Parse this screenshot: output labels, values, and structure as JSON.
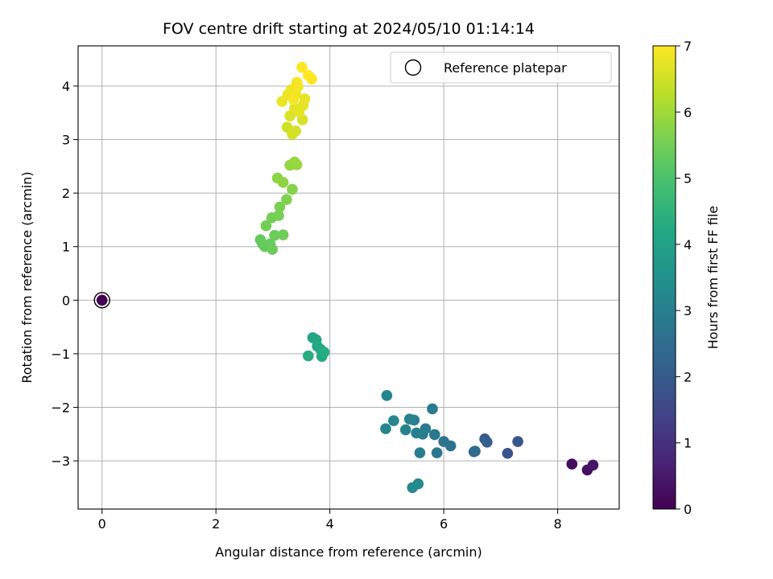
{
  "chart_data": {
    "type": "scatter",
    "title": "FOV centre drift starting at 2024/05/10 01:14:14",
    "xlabel": "Angular distance from reference (arcmin)",
    "ylabel": "Rotation from reference (arcmin)",
    "xlim": [
      -0.42,
      9.08
    ],
    "ylim": [
      -3.9,
      4.75
    ],
    "xticks": [
      "0",
      "2",
      "4",
      "6",
      "8"
    ],
    "yticks": [
      "4",
      "3",
      "2",
      "1",
      "0",
      "−1",
      "−2",
      "−3"
    ],
    "grid": true,
    "legend": {
      "placement": "top-right",
      "label": "Reference platepar"
    },
    "reference_point": {
      "x": 0,
      "y": 0
    },
    "colorbar": {
      "label": "Hours from first FF file",
      "range": [
        0,
        7
      ],
      "ticks": [
        "0",
        "1",
        "2",
        "3",
        "4",
        "5",
        "6",
        "7"
      ],
      "colormap": "viridis"
    },
    "points": [
      {
        "x": 0.0,
        "y": 0.0,
        "h": 0.0
      },
      {
        "x": 8.25,
        "y": -3.06,
        "h": 0.2
      },
      {
        "x": 8.52,
        "y": -3.17,
        "h": 0.3
      },
      {
        "x": 8.62,
        "y": -3.08,
        "h": 0.4
      },
      {
        "x": 7.12,
        "y": -2.86,
        "h": 1.8
      },
      {
        "x": 7.3,
        "y": -2.64,
        "h": 1.9
      },
      {
        "x": 6.72,
        "y": -2.59,
        "h": 2.0
      },
      {
        "x": 6.76,
        "y": -2.65,
        "h": 2.1
      },
      {
        "x": 6.53,
        "y": -2.83,
        "h": 2.4
      },
      {
        "x": 6.55,
        "y": -2.82,
        "h": 2.45
      },
      {
        "x": 6.12,
        "y": -2.72,
        "h": 2.6
      },
      {
        "x": 6.0,
        "y": -2.64,
        "h": 2.7
      },
      {
        "x": 5.88,
        "y": -2.85,
        "h": 2.75
      },
      {
        "x": 5.84,
        "y": -2.51,
        "h": 2.8
      },
      {
        "x": 5.8,
        "y": -2.03,
        "h": 2.85
      },
      {
        "x": 5.68,
        "y": -2.4,
        "h": 2.9
      },
      {
        "x": 5.63,
        "y": -2.5,
        "h": 2.95
      },
      {
        "x": 5.58,
        "y": -2.85,
        "h": 3.0
      },
      {
        "x": 5.52,
        "y": -2.48,
        "h": 3.0
      },
      {
        "x": 5.48,
        "y": -2.24,
        "h": 3.05
      },
      {
        "x": 5.4,
        "y": -2.22,
        "h": 3.1
      },
      {
        "x": 5.33,
        "y": -2.42,
        "h": 3.1
      },
      {
        "x": 5.12,
        "y": -2.25,
        "h": 3.15
      },
      {
        "x": 4.98,
        "y": -2.4,
        "h": 3.2
      },
      {
        "x": 5.0,
        "y": -1.78,
        "h": 3.2
      },
      {
        "x": 5.55,
        "y": -3.43,
        "h": 3.25
      },
      {
        "x": 5.45,
        "y": -3.5,
        "h": 3.3
      },
      {
        "x": 3.7,
        "y": -0.7,
        "h": 4.1
      },
      {
        "x": 3.76,
        "y": -0.74,
        "h": 4.15
      },
      {
        "x": 3.78,
        "y": -0.86,
        "h": 4.2
      },
      {
        "x": 3.84,
        "y": -0.92,
        "h": 4.2
      },
      {
        "x": 3.86,
        "y": -1.05,
        "h": 4.25
      },
      {
        "x": 3.9,
        "y": -0.97,
        "h": 4.3
      },
      {
        "x": 3.62,
        "y": -1.04,
        "h": 4.35
      },
      {
        "x": 2.78,
        "y": 1.13,
        "h": 5.3
      },
      {
        "x": 2.82,
        "y": 1.05,
        "h": 5.3
      },
      {
        "x": 2.86,
        "y": 1.0,
        "h": 5.35
      },
      {
        "x": 2.95,
        "y": 1.05,
        "h": 5.35
      },
      {
        "x": 2.99,
        "y": 0.95,
        "h": 5.4
      },
      {
        "x": 3.03,
        "y": 1.21,
        "h": 5.4
      },
      {
        "x": 3.18,
        "y": 1.22,
        "h": 5.45
      },
      {
        "x": 2.88,
        "y": 1.39,
        "h": 5.5
      },
      {
        "x": 2.98,
        "y": 1.54,
        "h": 5.5
      },
      {
        "x": 3.1,
        "y": 1.58,
        "h": 5.55
      },
      {
        "x": 3.12,
        "y": 1.74,
        "h": 5.6
      },
      {
        "x": 3.24,
        "y": 1.88,
        "h": 5.65
      },
      {
        "x": 3.34,
        "y": 2.07,
        "h": 5.7
      },
      {
        "x": 3.08,
        "y": 2.28,
        "h": 5.8
      },
      {
        "x": 3.18,
        "y": 2.2,
        "h": 5.8
      },
      {
        "x": 3.3,
        "y": 2.52,
        "h": 5.85
      },
      {
        "x": 3.38,
        "y": 2.58,
        "h": 5.9
      },
      {
        "x": 3.42,
        "y": 2.53,
        "h": 5.9
      },
      {
        "x": 3.25,
        "y": 3.23,
        "h": 6.5
      },
      {
        "x": 3.34,
        "y": 3.1,
        "h": 6.55
      },
      {
        "x": 3.4,
        "y": 3.16,
        "h": 6.55
      },
      {
        "x": 3.3,
        "y": 3.44,
        "h": 6.6
      },
      {
        "x": 3.52,
        "y": 3.37,
        "h": 6.6
      },
      {
        "x": 3.38,
        "y": 3.58,
        "h": 6.7
      },
      {
        "x": 3.46,
        "y": 3.52,
        "h": 6.7
      },
      {
        "x": 3.53,
        "y": 3.64,
        "h": 6.75
      },
      {
        "x": 3.56,
        "y": 3.76,
        "h": 6.75
      },
      {
        "x": 3.16,
        "y": 3.71,
        "h": 6.8
      },
      {
        "x": 3.26,
        "y": 3.84,
        "h": 6.8
      },
      {
        "x": 3.32,
        "y": 3.93,
        "h": 6.85
      },
      {
        "x": 3.4,
        "y": 3.86,
        "h": 6.85
      },
      {
        "x": 3.44,
        "y": 3.99,
        "h": 6.9
      },
      {
        "x": 3.42,
        "y": 4.07,
        "h": 6.9
      },
      {
        "x": 3.36,
        "y": 3.75,
        "h": 6.9
      },
      {
        "x": 3.51,
        "y": 4.35,
        "h": 7.0
      },
      {
        "x": 3.62,
        "y": 4.2,
        "h": 7.0
      },
      {
        "x": 3.68,
        "y": 4.13,
        "h": 7.0
      }
    ]
  }
}
